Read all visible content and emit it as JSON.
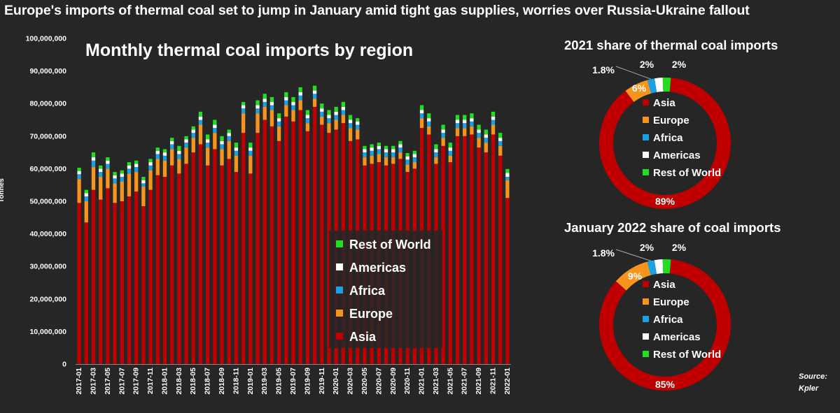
{
  "headline": "Europe's imports of thermal coal set to jump in January amid tight gas supplies, worries over Russia-Ukraine fallout",
  "source": {
    "line1": "Source:",
    "line2": "Kpler"
  },
  "colors": {
    "asia": "#c00000",
    "europe": "#f7941d",
    "africa": "#1ba1e2",
    "americas": "#ffffff",
    "rest_of_world": "#22dd22",
    "background": "#262626"
  },
  "chart_data": [
    {
      "type": "bar",
      "stacked": true,
      "title": "Monthly thermal coal imports by region",
      "ylabel": "Tonnes",
      "xlabel": "",
      "ylim": [
        0,
        100000000
      ],
      "yticks": [
        "0",
        "10,000,000",
        "20,000,000",
        "30,000,000",
        "40,000,000",
        "50,000,000",
        "60,000,000",
        "70,000,000",
        "80,000,000",
        "90,000,000",
        "100,000,000"
      ],
      "legend_order": [
        "Rest of World",
        "Americas",
        "Africa",
        "Europe",
        "Asia"
      ],
      "categories": [
        "2017-01",
        "2017-02",
        "2017-03",
        "2017-04",
        "2017-05",
        "2017-06",
        "2017-07",
        "2017-08",
        "2017-09",
        "2017-10",
        "2017-11",
        "2017-12",
        "2018-01",
        "2018-02",
        "2018-03",
        "2018-04",
        "2018-05",
        "2018-06",
        "2018-07",
        "2018-08",
        "2018-09",
        "2018-10",
        "2018-11",
        "2018-12",
        "2019-01",
        "2019-02",
        "2019-03",
        "2019-04",
        "2019-05",
        "2019-06",
        "2019-07",
        "2019-08",
        "2019-09",
        "2019-10",
        "2019-11",
        "2019-12",
        "2020-01",
        "2020-02",
        "2020-03",
        "2020-04",
        "2020-05",
        "2020-06",
        "2020-07",
        "2020-08",
        "2020-09",
        "2020-10",
        "2020-11",
        "2020-12",
        "2021-01",
        "2021-02",
        "2021-03",
        "2021-04",
        "2021-05",
        "2021-06",
        "2021-07",
        "2021-08",
        "2021-09",
        "2021-10",
        "2021-11",
        "2021-12",
        "2022-01"
      ],
      "tick_labels_shown": [
        "2017-01",
        "2017-03",
        "2017-05",
        "2017-07",
        "2017-09",
        "2017-11",
        "2018-01",
        "2018-03",
        "2018-05",
        "2018-07",
        "2018-09",
        "2018-11",
        "2019-01",
        "2019-03",
        "2019-05",
        "2019-07",
        "2019-09",
        "2019-11",
        "2020-01",
        "2020-03",
        "2020-05",
        "2020-07",
        "2020-09",
        "2020-11",
        "2021-01",
        "2021-03",
        "2021-05",
        "2021-07",
        "2021-09",
        "2021-11",
        "2022-01"
      ],
      "series": [
        {
          "name": "Asia",
          "values": [
            49.5,
            43.5,
            53.5,
            50.5,
            54,
            49.5,
            50,
            51.5,
            53,
            48.5,
            53.5,
            58,
            57.5,
            61,
            58.5,
            61.5,
            65,
            67.5,
            61,
            66,
            61,
            63,
            59,
            71,
            58.5,
            71,
            75,
            73,
            68.5,
            76,
            74.5,
            78,
            71.5,
            79,
            73.5,
            71,
            72,
            74,
            68.5,
            69,
            61,
            61.5,
            62,
            61,
            61.5,
            63,
            59,
            60,
            72.5,
            70.5,
            61.5,
            67,
            62,
            70,
            70,
            70.5,
            66.5,
            65,
            70.5,
            64,
            51
          ]
        },
        {
          "name": "Europe",
          "values": [
            7.3,
            6.5,
            7,
            7,
            6,
            6,
            6,
            7,
            6,
            6,
            6,
            5,
            5,
            5,
            4.5,
            5,
            4.5,
            6,
            5.5,
            5,
            5,
            5.5,
            5,
            6,
            5.5,
            6,
            4,
            5,
            4.5,
            3.5,
            3.5,
            3,
            2.5,
            2.5,
            2.5,
            3,
            3,
            2.5,
            4,
            3,
            2.5,
            2.5,
            2.5,
            2.5,
            2,
            2,
            2.3,
            2,
            3,
            2.5,
            2,
            2.5,
            2,
            2.5,
            2.5,
            2.5,
            3,
            3,
            3,
            3,
            5.5
          ]
        },
        {
          "name": "Africa",
          "values": [
            1.5,
            1.5,
            2,
            1.5,
            1.5,
            1.5,
            1.5,
            1.5,
            1.5,
            1,
            1.5,
            1.5,
            1.5,
            1.5,
            1.5,
            1.5,
            1.5,
            1.5,
            1.5,
            1.5,
            1.5,
            1.5,
            1.5,
            1.5,
            1.5,
            1.5,
            1.5,
            1.5,
            1.5,
            1.5,
            1.5,
            1.5,
            1.5,
            1.5,
            1.5,
            1.5,
            1.5,
            1.5,
            1.5,
            1.5,
            1.5,
            1.5,
            1.5,
            1.5,
            1.5,
            1.5,
            1.5,
            1.5,
            1.5,
            1.5,
            1.5,
            1.5,
            1.5,
            1.5,
            1.5,
            1.5,
            1.5,
            1.5,
            1.5,
            1.5,
            1
          ]
        },
        {
          "name": "Americas",
          "values": [
            1,
            1,
            1,
            1,
            1,
            1,
            1,
            1,
            1,
            1,
            1,
            1,
            1,
            1,
            1,
            1,
            1,
            1,
            1,
            1,
            1,
            1,
            1,
            1,
            1,
            1,
            1,
            1,
            1,
            1,
            1,
            1,
            1,
            1,
            1,
            1,
            1,
            1,
            1,
            1,
            1,
            1,
            1,
            1,
            1,
            1,
            1,
            1,
            1,
            1,
            1,
            1,
            1,
            1,
            1,
            1,
            1,
            1,
            1,
            1,
            1.2
          ]
        },
        {
          "name": "Rest of World",
          "values": [
            1,
            1,
            1.5,
            1,
            1,
            1,
            1,
            1,
            1,
            1,
            1,
            1,
            1,
            1,
            1.5,
            1,
            1,
            1.5,
            1.5,
            1.5,
            1.5,
            1,
            1.5,
            1,
            1.5,
            1.5,
            1.5,
            1.5,
            1.5,
            1.5,
            1.5,
            1.5,
            1.5,
            1.5,
            1.5,
            1.5,
            1.5,
            1.5,
            1.5,
            1,
            1,
            1,
            1,
            1,
            1,
            1,
            1,
            1,
            1.5,
            1.5,
            1.5,
            1.5,
            1.5,
            1.5,
            1.5,
            1.5,
            1.5,
            1.5,
            1.5,
            1.5,
            1.2
          ]
        }
      ]
    },
    {
      "type": "pie",
      "donut": true,
      "title": "2021 share of thermal coal imports",
      "slices": [
        {
          "name": "Asia",
          "value": 89,
          "label": "89%"
        },
        {
          "name": "Europe",
          "value": 6,
          "label": "6%"
        },
        {
          "name": "Africa",
          "value": 1.8,
          "label": "1.8%"
        },
        {
          "name": "Americas",
          "value": 2,
          "label": "2%"
        },
        {
          "name": "Rest of World",
          "value": 2,
          "label": "2%"
        }
      ],
      "legend": [
        "Asia",
        "Europe",
        "Africa",
        "Americas",
        "Rest of World"
      ]
    },
    {
      "type": "pie",
      "donut": true,
      "title": "January 2022 share of coal imports",
      "slices": [
        {
          "name": "Asia",
          "value": 85,
          "label": "85%"
        },
        {
          "name": "Europe",
          "value": 9,
          "label": "9%"
        },
        {
          "name": "Africa",
          "value": 1.8,
          "label": "1.8%"
        },
        {
          "name": "Americas",
          "value": 2,
          "label": "2%"
        },
        {
          "name": "Rest of World",
          "value": 2,
          "label": "2%"
        }
      ],
      "legend": [
        "Asia",
        "Europe",
        "Africa",
        "Americas",
        "Rest of World"
      ]
    }
  ]
}
